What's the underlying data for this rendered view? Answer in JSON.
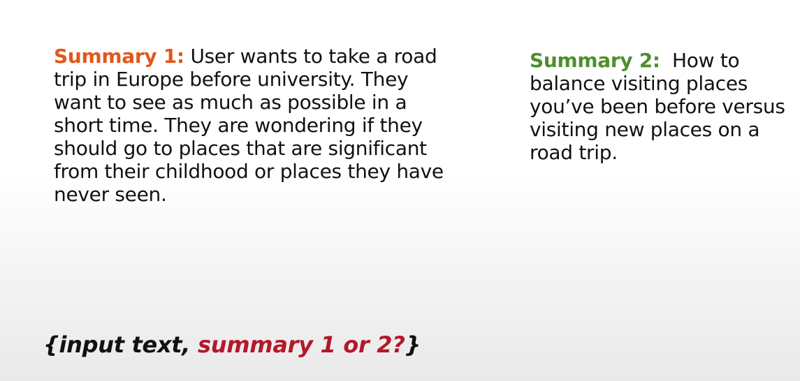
{
  "summary_1": {
    "label": "Summary 1:",
    "text": " User wants to take a road trip in Europe before university. They want to see as much as possible in a short time. They are wondering if they should go to places that are significant from their childhood or places they have never seen."
  },
  "summary_2": {
    "label": "Summary 2:",
    "text": "  How to balance visiting places you’ve been before versus visiting new places on a road trip."
  },
  "prompt_line": {
    "open": "{input text, ",
    "highlight": "summary 1 or 2?",
    "close": "}"
  },
  "colors": {
    "summary_1_label": "#e2571b",
    "summary_2_label": "#4e8f2c",
    "highlight": "#b3182a"
  }
}
